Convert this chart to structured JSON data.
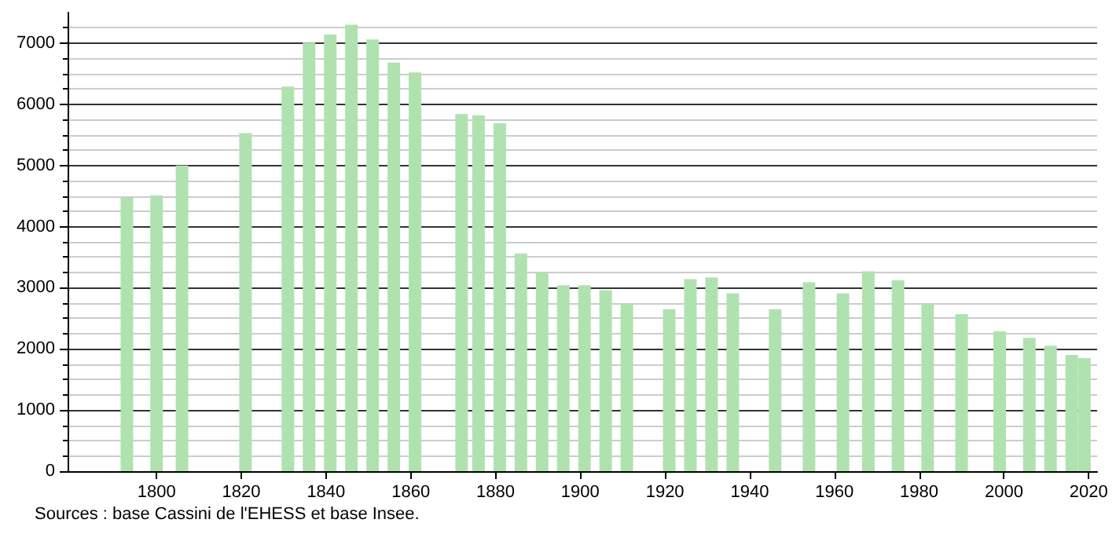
{
  "chart_data": {
    "type": "bar",
    "x": [
      1793,
      1800,
      1806,
      1821,
      1831,
      1836,
      1841,
      1846,
      1851,
      1856,
      1861,
      1872,
      1876,
      1881,
      1886,
      1891,
      1896,
      1901,
      1906,
      1911,
      1921,
      1926,
      1931,
      1936,
      1946,
      1954,
      1962,
      1968,
      1975,
      1982,
      1990,
      1999,
      2006,
      2011,
      2016,
      2019
    ],
    "values": [
      4470,
      4510,
      5000,
      5530,
      6290,
      7010,
      7140,
      7300,
      7060,
      6680,
      6520,
      5840,
      5820,
      5690,
      3560,
      3250,
      3040,
      3040,
      2960,
      2740,
      2650,
      3140,
      3170,
      2910,
      2650,
      3090,
      2910,
      3270,
      3120,
      2740,
      2570,
      2290,
      2180,
      2050,
      1900,
      1850
    ],
    "color": "#b0e2b0",
    "xlim": [
      1779,
      2022
    ],
    "xticks": [
      1800,
      1820,
      1840,
      1860,
      1880,
      1900,
      1920,
      1940,
      1960,
      1980,
      2000,
      2020
    ],
    "ylim": [
      0,
      7500
    ],
    "yticks": [
      0,
      1000,
      2000,
      3000,
      4000,
      5000,
      6000,
      7000
    ],
    "grid": "y",
    "annotations": [
      "Sources : base Cassini de l'EHESS et base Insee."
    ]
  }
}
